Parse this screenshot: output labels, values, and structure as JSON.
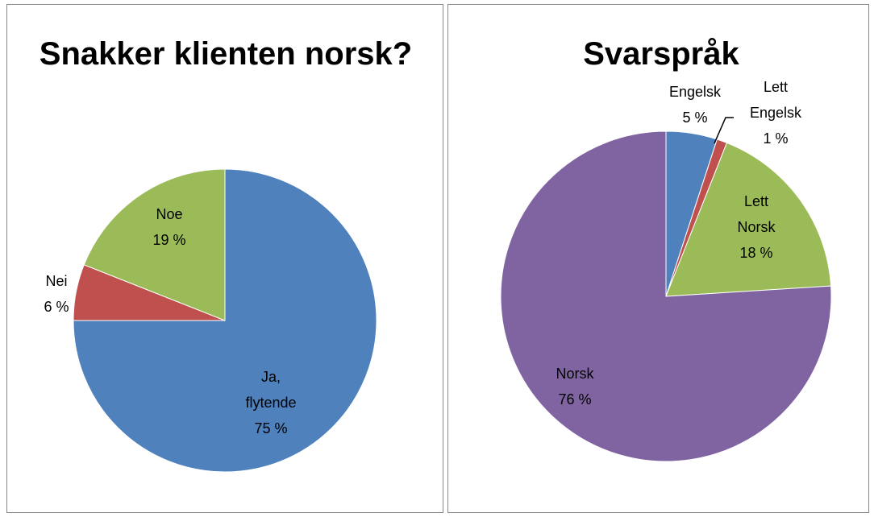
{
  "chart_data": [
    {
      "type": "pie",
      "title": "Snakker klienten norsk?",
      "categories": [
        "Ja, flytende",
        "Nei",
        "Noe"
      ],
      "values": [
        75,
        6,
        19
      ],
      "value_labels": [
        "75 %",
        "6 %",
        "19 %"
      ],
      "colors": [
        "#4f81bd",
        "#c0504d",
        "#9bbb59"
      ]
    },
    {
      "type": "pie",
      "title": "Svarspråk",
      "categories": [
        "Engelsk",
        "Lett Engelsk",
        "Lett Norsk",
        "Norsk"
      ],
      "values": [
        5,
        1,
        18,
        76
      ],
      "value_labels": [
        "5 %",
        "1 %",
        "18 %",
        "76 %"
      ],
      "colors": [
        "#4f81bd",
        "#c0504d",
        "#9bbb59",
        "#8064a2"
      ]
    }
  ]
}
